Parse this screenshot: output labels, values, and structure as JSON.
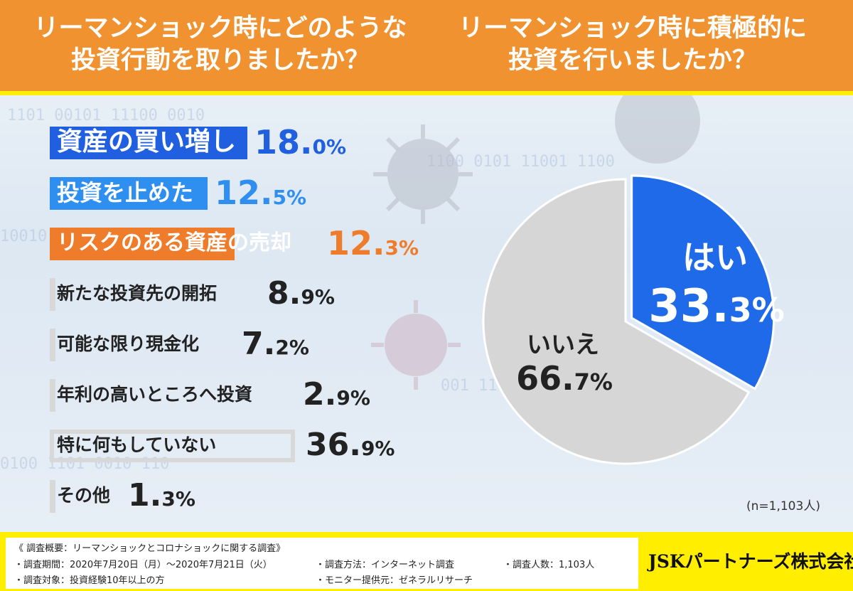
{
  "header": {
    "q1_line1": "リーマンショック時にどのような",
    "q1_line2": "投資行動を取りましたか？",
    "q2_line1": "リーマンショック時に積極的に",
    "q2_line2": "投資を行いましたか？"
  },
  "chart_data": [
    {
      "type": "bar",
      "title": "リーマンショック時にどのような投資行動を取りましたか？",
      "categories": [
        "資産の買い増し",
        "投資を止めた",
        "リスクのある資産の売却",
        "新たな投資先の開拓",
        "可能な限り現金化",
        "年利の高いところへ投資",
        "特に何もしていない",
        "その他"
      ],
      "values": [
        18.0,
        12.5,
        12.3,
        8.9,
        7.2,
        2.9,
        36.9,
        1.3
      ],
      "value_labels": [
        {
          "big": "18.",
          "small": "0%"
        },
        {
          "big": "12.",
          "small": "5%"
        },
        {
          "big": "12.",
          "small": "3%"
        },
        {
          "big": "8.",
          "small": "9%"
        },
        {
          "big": "7.",
          "small": "2%"
        },
        {
          "big": "2.",
          "small": "9%"
        },
        {
          "big": "36.",
          "small": "9%"
        },
        {
          "big": "1.",
          "small": "3%"
        }
      ],
      "colors": [
        "#1f5fe0",
        "#2f8ff0",
        "#ef7c2a",
        "#d8d8d8",
        "#d8d8d8",
        "#d8d8d8",
        "#d8d8d8",
        "#d8d8d8"
      ],
      "text_colors": [
        "#1f5fe0",
        "#2f8ff0",
        "#ef7c2a",
        "#222222",
        "#222222",
        "#222222",
        "#222222",
        "#222222"
      ]
    },
    {
      "type": "pie",
      "title": "リーマンショック時に積極的に投資を行いましたか？",
      "categories": [
        "はい",
        "いいえ"
      ],
      "values": [
        33.3,
        66.7
      ],
      "value_labels": [
        {
          "big": "33.",
          "small": "3%"
        },
        {
          "big": "66.",
          "small": "7%"
        }
      ],
      "colors": [
        "#1f6ae8",
        "#d6d6d6"
      ],
      "note": "(n=1,103人)"
    }
  ],
  "footer": {
    "title": "《 調査概要：リーマンショックとコロナショックに関する調査》",
    "items": [
      "・調査期間：2020年7月20日（月）～2020年7月21日（火）",
      "・調査対象：投資経験10年以上の方",
      "・調査方法：インターネット調査",
      "・モニター提供元：ゼネラルリサーチ",
      "・調査人数：1,103人"
    ],
    "company": "JSKパートナーズ株式会社"
  }
}
